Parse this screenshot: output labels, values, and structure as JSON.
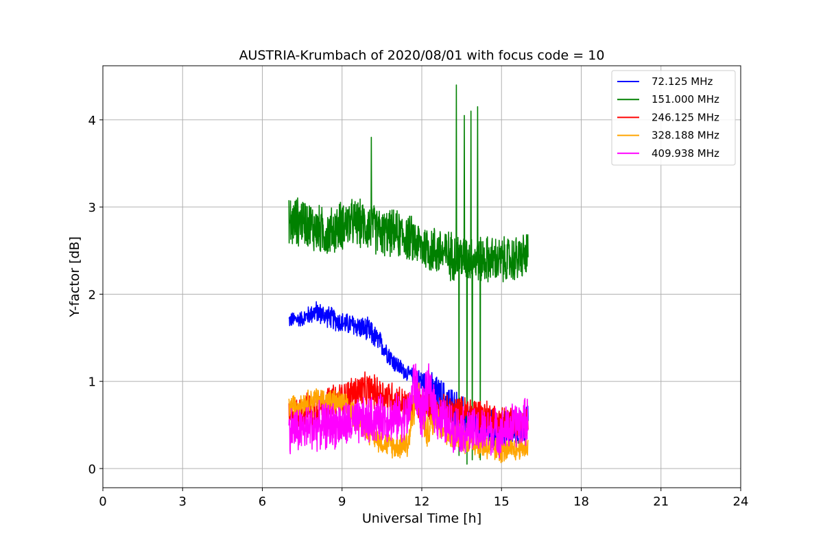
{
  "chart_data": {
    "type": "line",
    "title": "AUSTRIA-Krumbach of 2020/08/01 with focus code = 10",
    "xlabel": "Universal Time [h]",
    "ylabel": "Y-factor [dB]",
    "xlim": [
      0,
      24
    ],
    "ylim": [
      -0.22,
      4.62
    ],
    "xticks": [
      0,
      3,
      6,
      9,
      12,
      15,
      18,
      21,
      24
    ],
    "yticks": [
      0,
      1,
      2,
      3,
      4
    ],
    "grid": true,
    "legend_position": "top-right",
    "series": [
      {
        "name": "72.125 MHz",
        "legend_label": " 72.125 MHz",
        "color": "#0000ff",
        "x_range": [
          7.0,
          16.0
        ],
        "points": [
          [
            7.0,
            1.7
          ],
          [
            7.5,
            1.72
          ],
          [
            8.0,
            1.8
          ],
          [
            8.5,
            1.74
          ],
          [
            9.0,
            1.67
          ],
          [
            9.5,
            1.64
          ],
          [
            10.0,
            1.58
          ],
          [
            10.5,
            1.42
          ],
          [
            11.0,
            1.2
          ],
          [
            11.5,
            1.08
          ],
          [
            11.8,
            1.05
          ],
          [
            12.2,
            0.95
          ],
          [
            12.5,
            0.85
          ],
          [
            13.0,
            0.75
          ],
          [
            13.5,
            0.62
          ],
          [
            14.0,
            0.5
          ],
          [
            14.5,
            0.45
          ],
          [
            15.0,
            0.42
          ],
          [
            15.5,
            0.45
          ],
          [
            16.0,
            0.5
          ]
        ],
        "noise": [
          0.1,
          0.1,
          0.14,
          0.14,
          0.14,
          0.14,
          0.16,
          0.14,
          0.12,
          0.1,
          0.1,
          0.2,
          0.25,
          0.25,
          0.25,
          0.25,
          0.25,
          0.25,
          0.25,
          0.25
        ]
      },
      {
        "name": "151.000 MHz",
        "legend_label": "151.000 MHz",
        "color": "#008000",
        "x_range": [
          7.0,
          16.0
        ],
        "points": [
          [
            7.0,
            2.8
          ],
          [
            7.5,
            2.85
          ],
          [
            8.0,
            2.75
          ],
          [
            8.5,
            2.7
          ],
          [
            9.0,
            2.8
          ],
          [
            9.5,
            2.82
          ],
          [
            10.0,
            2.78
          ],
          [
            10.5,
            2.7
          ],
          [
            11.0,
            2.7
          ],
          [
            11.5,
            2.65
          ],
          [
            12.0,
            2.55
          ],
          [
            12.5,
            2.5
          ],
          [
            13.0,
            2.45
          ],
          [
            13.5,
            2.42
          ],
          [
            14.0,
            2.4
          ],
          [
            14.5,
            2.4
          ],
          [
            15.0,
            2.38
          ],
          [
            15.5,
            2.4
          ],
          [
            16.0,
            2.45
          ]
        ],
        "noise": [
          0.35,
          0.3,
          0.32,
          0.3,
          0.32,
          0.3,
          0.32,
          0.3,
          0.3,
          0.3,
          0.3,
          0.32,
          0.32,
          0.3,
          0.3,
          0.3,
          0.3,
          0.3,
          0.3
        ],
        "spikes": [
          [
            10.1,
            3.8
          ],
          [
            13.3,
            4.4
          ],
          [
            13.6,
            4.05
          ],
          [
            13.85,
            4.1
          ],
          [
            14.1,
            4.15
          ]
        ],
        "dips": [
          [
            13.4,
            0.15
          ],
          [
            13.7,
            0.05
          ],
          [
            13.9,
            0.1
          ],
          [
            14.2,
            0.1
          ]
        ]
      },
      {
        "name": "246.125 MHz",
        "legend_label": "246.125 MHz",
        "color": "#ff0000",
        "x_range": [
          7.0,
          16.0
        ],
        "points": [
          [
            7.0,
            0.6
          ],
          [
            8.0,
            0.7
          ],
          [
            9.0,
            0.8
          ],
          [
            9.5,
            0.88
          ],
          [
            10.0,
            0.9
          ],
          [
            10.5,
            0.85
          ],
          [
            11.0,
            0.8
          ],
          [
            11.5,
            0.7
          ],
          [
            12.0,
            0.72
          ],
          [
            12.5,
            0.7
          ],
          [
            13.0,
            0.65
          ],
          [
            13.5,
            0.65
          ],
          [
            14.0,
            0.65
          ],
          [
            14.5,
            0.6
          ],
          [
            15.0,
            0.55
          ],
          [
            15.5,
            0.5
          ],
          [
            16.0,
            0.5
          ]
        ],
        "noise": [
          0.2,
          0.22,
          0.22,
          0.22,
          0.22,
          0.22,
          0.22,
          0.2,
          0.2,
          0.2,
          0.2,
          0.2,
          0.2,
          0.2,
          0.2,
          0.2,
          0.2
        ]
      },
      {
        "name": "328.188 MHz",
        "legend_label": "328.188 MHz",
        "color": "#ffa500",
        "x_range": [
          7.0,
          16.0
        ],
        "points": [
          [
            7.0,
            0.7
          ],
          [
            7.5,
            0.75
          ],
          [
            8.0,
            0.8
          ],
          [
            8.5,
            0.78
          ],
          [
            9.0,
            0.75
          ],
          [
            9.5,
            0.6
          ],
          [
            10.0,
            0.45
          ],
          [
            10.5,
            0.3
          ],
          [
            11.0,
            0.25
          ],
          [
            11.5,
            0.3
          ],
          [
            11.8,
            0.9
          ],
          [
            12.2,
            0.4
          ],
          [
            12.5,
            0.6
          ],
          [
            13.0,
            0.4
          ],
          [
            13.5,
            0.35
          ],
          [
            14.0,
            0.3
          ],
          [
            14.5,
            0.25
          ],
          [
            15.0,
            0.2
          ],
          [
            15.5,
            0.22
          ],
          [
            16.0,
            0.25
          ]
        ],
        "noise": [
          0.15,
          0.15,
          0.15,
          0.15,
          0.15,
          0.18,
          0.18,
          0.15,
          0.15,
          0.2,
          0.25,
          0.2,
          0.2,
          0.2,
          0.18,
          0.18,
          0.18,
          0.15,
          0.15,
          0.15
        ]
      },
      {
        "name": "409.938 MHz",
        "legend_label": "409.938 MHz",
        "color": "#ff00ff",
        "x_range": [
          7.0,
          16.0
        ],
        "points": [
          [
            7.0,
            0.45
          ],
          [
            7.5,
            0.45
          ],
          [
            8.0,
            0.48
          ],
          [
            8.5,
            0.5
          ],
          [
            9.0,
            0.5
          ],
          [
            9.5,
            0.52
          ],
          [
            10.0,
            0.55
          ],
          [
            10.5,
            0.58
          ],
          [
            11.0,
            0.58
          ],
          [
            11.5,
            0.6
          ],
          [
            11.7,
            1.0
          ],
          [
            12.0,
            0.65
          ],
          [
            12.3,
            0.9
          ],
          [
            12.6,
            0.6
          ],
          [
            13.0,
            0.5
          ],
          [
            13.5,
            0.45
          ],
          [
            14.0,
            0.42
          ],
          [
            14.5,
            0.42
          ],
          [
            15.0,
            0.42
          ],
          [
            15.5,
            0.5
          ],
          [
            16.0,
            0.55
          ]
        ],
        "noise": [
          0.3,
          0.3,
          0.3,
          0.3,
          0.3,
          0.3,
          0.3,
          0.3,
          0.3,
          0.3,
          0.35,
          0.35,
          0.35,
          0.32,
          0.3,
          0.3,
          0.3,
          0.3,
          0.3,
          0.3,
          0.3
        ]
      }
    ]
  }
}
